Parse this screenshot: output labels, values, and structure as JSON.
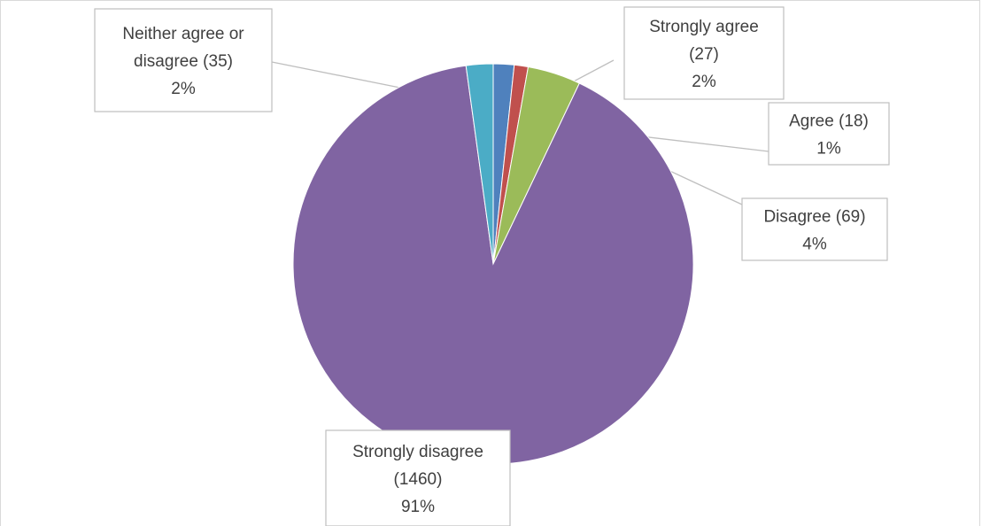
{
  "chart_data": {
    "type": "pie",
    "title": "",
    "slices": [
      {
        "label": "Strongly agree",
        "value": 27,
        "percent": "2%",
        "color": "#4F81BD"
      },
      {
        "label": "Agree",
        "value": 18,
        "percent": "1%",
        "color": "#C0504D"
      },
      {
        "label": "Disagree",
        "value": 69,
        "percent": "4%",
        "color": "#9BBB59"
      },
      {
        "label": "Strongly disagree",
        "value": 1460,
        "percent": "91%",
        "color": "#8064A2"
      },
      {
        "label": "Neither agree or disagree",
        "value": 35,
        "percent": "2%",
        "color": "#4BACC6"
      }
    ],
    "callouts": [
      {
        "name": "callout-strongly-agree",
        "lines": [
          "Strongly agree",
          "(27)",
          "2%"
        ]
      },
      {
        "name": "callout-agree",
        "lines": [
          "Agree (18)",
          "1%"
        ]
      },
      {
        "name": "callout-disagree",
        "lines": [
          "Disagree (69)",
          "4%"
        ]
      },
      {
        "name": "callout-strongly-disagree",
        "lines": [
          "Strongly disagree",
          "(1460)",
          "91%"
        ]
      },
      {
        "name": "callout-neither",
        "lines": [
          "Neither agree or",
          "disagree (35)",
          "2%"
        ]
      }
    ]
  }
}
